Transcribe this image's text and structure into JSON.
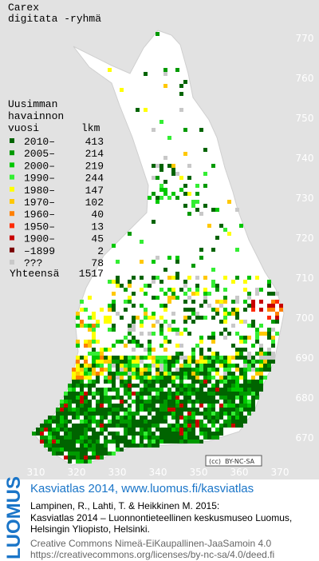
{
  "title": [
    "Carex",
    "digitata -ryhmä"
  ],
  "legend": {
    "header": [
      "Uusimman",
      "havainnon"
    ],
    "column_year": "vuosi",
    "column_count": "lkm",
    "rows": [
      {
        "label": "2010–",
        "count": 413,
        "color": "#006400"
      },
      {
        "label": "2005–",
        "count": 214,
        "color": "#009a00"
      },
      {
        "label": "2000–",
        "count": 219,
        "color": "#00c800"
      },
      {
        "label": "1990–",
        "count": 244,
        "color": "#33ee33"
      },
      {
        "label": "1980–",
        "count": 147,
        "color": "#ffff00"
      },
      {
        "label": "1970–",
        "count": 102,
        "color": "#ffc800"
      },
      {
        "label": "1960–",
        "count": 40,
        "color": "#ff8000"
      },
      {
        "label": "1950–",
        "count": 13,
        "color": "#ff2a00"
      },
      {
        "label": "1900–",
        "count": 45,
        "color": "#c80000"
      },
      {
        "label": "–1899",
        "count": 2,
        "color": "#7a0000"
      },
      {
        "label": "???",
        "count": 78,
        "color": "#c8c8c8"
      }
    ],
    "total_label": "Yhteensä",
    "total": 1517
  },
  "x_labels": [
    310,
    320,
    330,
    340,
    350,
    360,
    370
  ],
  "y_labels": [
    770,
    760,
    750,
    740,
    730,
    720,
    710,
    700,
    690,
    680,
    670
  ],
  "license_badge": "BY-NC-SA",
  "footer": {
    "logo": "LUOMUS",
    "heading": "Kasviatlas 2014, www.luomus.fi/kasviatlas",
    "citation": [
      "Lampinen, R., Lahti, T. & Heikkinen M. 2015:",
      "Kasviatlas 2014 – Luonnontieteellinen keskusmuseo Luomus,",
      "Helsingin Yliopisto, Helsinki."
    ],
    "license": [
      "Creative Commons Nimeä-EiKaupallinen-JaaSamoin 4.0",
      "https://creativecommons.org/licenses/by-nc-sa/4.0/deed.fi"
    ]
  }
}
